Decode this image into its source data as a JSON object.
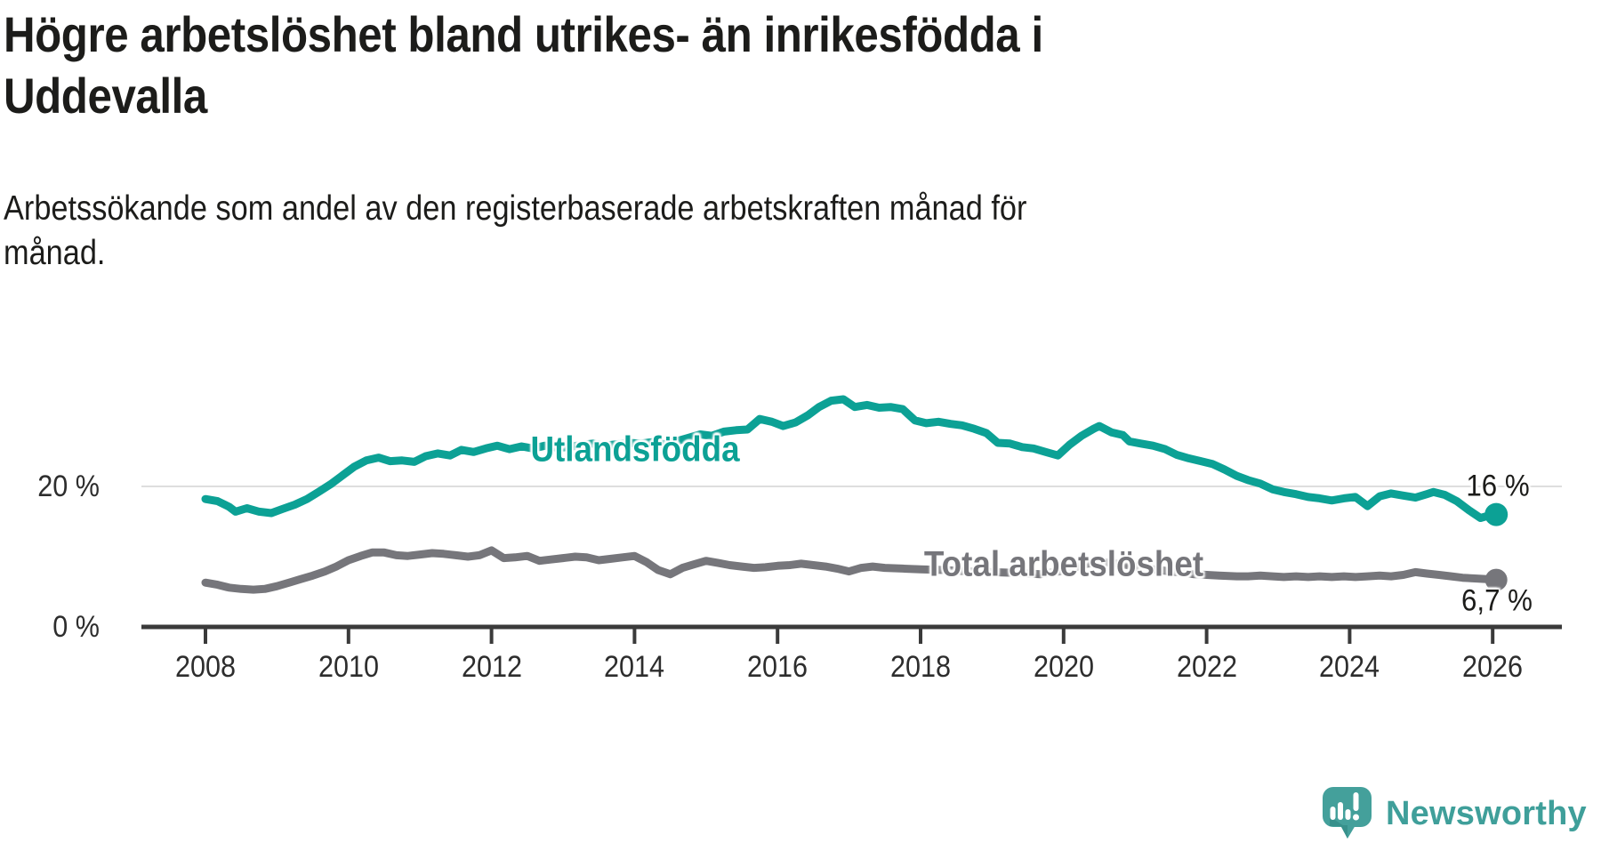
{
  "header": {
    "title_lines": [
      "Högre arbetslöshet bland utrikes- än inrikesfödda i",
      "Uddevalla"
    ],
    "subtitle_lines": [
      "Arbetssökande som andel av den registerbaserade arbetskraften månad för",
      "månad."
    ]
  },
  "branding": {
    "name": "Newsworthy",
    "logo_color": "#44a09b",
    "logo_dark": "#37908b",
    "text_color": "#3f9f9a"
  },
  "chart_data": {
    "type": "line",
    "unit": "%",
    "title": "Högre arbetslöshet bland utrikes- än inrikesfödda i Uddevalla",
    "subtitle": "Arbetssökande som andel av den registerbaserade arbetskraften månad för månad.",
    "x_axis": {
      "range": [
        2008,
        2026.1
      ],
      "ticks": [
        {
          "value": 2008,
          "label": "2008"
        },
        {
          "value": 2010,
          "label": "2010"
        },
        {
          "value": 2012,
          "label": "2012"
        },
        {
          "value": 2014,
          "label": "2014"
        },
        {
          "value": 2016,
          "label": "2016"
        },
        {
          "value": 2018,
          "label": "2018"
        },
        {
          "value": 2020,
          "label": "2020"
        },
        {
          "value": 2022,
          "label": "2022"
        },
        {
          "value": 2024,
          "label": "2024"
        },
        {
          "value": 2026,
          "label": "2026"
        }
      ]
    },
    "y_axis": {
      "range": [
        0,
        35
      ],
      "ticks": [
        {
          "value": 0,
          "label": "0 %",
          "gridline": false
        },
        {
          "value": 20,
          "label": "20 %",
          "gridline": true
        }
      ]
    },
    "style": {
      "axis_color": "#3a3a3a",
      "grid_color": "#dedede",
      "line_width": 9
    },
    "series": [
      {
        "name": "Utlandsfödda",
        "color": "#0ca195",
        "end_label": "16 %",
        "end_value": 16.0,
        "points": [
          [
            2008.0,
            18.2
          ],
          [
            2008.17,
            17.9
          ],
          [
            2008.33,
            17.1
          ],
          [
            2008.42,
            16.4
          ],
          [
            2008.58,
            16.9
          ],
          [
            2008.75,
            16.4
          ],
          [
            2008.92,
            16.2
          ],
          [
            2009.08,
            16.8
          ],
          [
            2009.25,
            17.4
          ],
          [
            2009.42,
            18.2
          ],
          [
            2009.58,
            19.2
          ],
          [
            2009.75,
            20.3
          ],
          [
            2009.92,
            21.6
          ],
          [
            2010.08,
            22.8
          ],
          [
            2010.25,
            23.7
          ],
          [
            2010.42,
            24.1
          ],
          [
            2010.58,
            23.6
          ],
          [
            2010.75,
            23.7
          ],
          [
            2010.92,
            23.5
          ],
          [
            2011.08,
            24.3
          ],
          [
            2011.25,
            24.7
          ],
          [
            2011.42,
            24.4
          ],
          [
            2011.58,
            25.2
          ],
          [
            2011.75,
            24.9
          ],
          [
            2011.92,
            25.4
          ],
          [
            2012.08,
            25.8
          ],
          [
            2012.25,
            25.3
          ],
          [
            2012.42,
            25.7
          ],
          [
            2012.58,
            25.4
          ],
          [
            2012.75,
            25.8
          ],
          [
            2012.92,
            25.5
          ],
          [
            2013.08,
            25.6
          ],
          [
            2013.25,
            25.9
          ],
          [
            2013.42,
            26.1
          ],
          [
            2013.58,
            25.8
          ],
          [
            2013.75,
            26.0
          ],
          [
            2013.92,
            26.2
          ],
          [
            2014.08,
            26.1
          ],
          [
            2014.25,
            26.3
          ],
          [
            2014.42,
            26.0
          ],
          [
            2014.58,
            26.4
          ],
          [
            2014.75,
            26.9
          ],
          [
            2014.92,
            27.4
          ],
          [
            2015.08,
            27.2
          ],
          [
            2015.25,
            27.8
          ],
          [
            2015.42,
            28.0
          ],
          [
            2015.58,
            28.1
          ],
          [
            2015.75,
            29.6
          ],
          [
            2015.92,
            29.2
          ],
          [
            2016.08,
            28.6
          ],
          [
            2016.25,
            29.1
          ],
          [
            2016.42,
            30.1
          ],
          [
            2016.58,
            31.3
          ],
          [
            2016.75,
            32.2
          ],
          [
            2016.92,
            32.4
          ],
          [
            2017.08,
            31.3
          ],
          [
            2017.25,
            31.6
          ],
          [
            2017.42,
            31.2
          ],
          [
            2017.58,
            31.3
          ],
          [
            2017.75,
            31.0
          ],
          [
            2017.92,
            29.4
          ],
          [
            2018.08,
            29.0
          ],
          [
            2018.25,
            29.2
          ],
          [
            2018.42,
            28.9
          ],
          [
            2018.58,
            28.7
          ],
          [
            2018.75,
            28.2
          ],
          [
            2018.92,
            27.6
          ],
          [
            2019.08,
            26.2
          ],
          [
            2019.25,
            26.1
          ],
          [
            2019.42,
            25.6
          ],
          [
            2019.58,
            25.4
          ],
          [
            2019.75,
            24.9
          ],
          [
            2019.92,
            24.4
          ],
          [
            2020.08,
            25.9
          ],
          [
            2020.25,
            27.2
          ],
          [
            2020.42,
            28.2
          ],
          [
            2020.5,
            28.6
          ],
          [
            2020.67,
            27.7
          ],
          [
            2020.83,
            27.3
          ],
          [
            2020.92,
            26.4
          ],
          [
            2021.08,
            26.1
          ],
          [
            2021.25,
            25.8
          ],
          [
            2021.42,
            25.3
          ],
          [
            2021.58,
            24.5
          ],
          [
            2021.75,
            24.0
          ],
          [
            2021.92,
            23.6
          ],
          [
            2022.08,
            23.2
          ],
          [
            2022.25,
            22.4
          ],
          [
            2022.42,
            21.5
          ],
          [
            2022.58,
            20.9
          ],
          [
            2022.75,
            20.4
          ],
          [
            2022.92,
            19.6
          ],
          [
            2023.08,
            19.2
          ],
          [
            2023.25,
            18.9
          ],
          [
            2023.42,
            18.5
          ],
          [
            2023.58,
            18.3
          ],
          [
            2023.75,
            18.0
          ],
          [
            2023.92,
            18.3
          ],
          [
            2024.08,
            18.5
          ],
          [
            2024.25,
            17.2
          ],
          [
            2024.42,
            18.6
          ],
          [
            2024.58,
            19.0
          ],
          [
            2024.75,
            18.7
          ],
          [
            2024.92,
            18.4
          ],
          [
            2025.08,
            18.9
          ],
          [
            2025.17,
            19.2
          ],
          [
            2025.33,
            18.8
          ],
          [
            2025.5,
            17.9
          ],
          [
            2025.67,
            16.6
          ],
          [
            2025.83,
            15.5
          ],
          [
            2026.0,
            16.0
          ]
        ]
      },
      {
        "name": "Total arbetslöshet",
        "color": "#76767b",
        "end_label": "6,7 %",
        "end_value": 6.7,
        "points": [
          [
            2008.0,
            6.3
          ],
          [
            2008.17,
            6.0
          ],
          [
            2008.33,
            5.6
          ],
          [
            2008.5,
            5.4
          ],
          [
            2008.67,
            5.3
          ],
          [
            2008.83,
            5.4
          ],
          [
            2009.0,
            5.8
          ],
          [
            2009.17,
            6.3
          ],
          [
            2009.33,
            6.8
          ],
          [
            2009.5,
            7.3
          ],
          [
            2009.67,
            7.9
          ],
          [
            2009.83,
            8.6
          ],
          [
            2010.0,
            9.5
          ],
          [
            2010.17,
            10.1
          ],
          [
            2010.33,
            10.6
          ],
          [
            2010.5,
            10.6
          ],
          [
            2010.67,
            10.2
          ],
          [
            2010.83,
            10.1
          ],
          [
            2011.0,
            10.3
          ],
          [
            2011.17,
            10.5
          ],
          [
            2011.33,
            10.4
          ],
          [
            2011.5,
            10.2
          ],
          [
            2011.67,
            10.0
          ],
          [
            2011.83,
            10.2
          ],
          [
            2012.0,
            10.9
          ],
          [
            2012.17,
            9.8
          ],
          [
            2012.33,
            9.9
          ],
          [
            2012.5,
            10.1
          ],
          [
            2012.67,
            9.4
          ],
          [
            2012.83,
            9.6
          ],
          [
            2013.0,
            9.8
          ],
          [
            2013.17,
            10.0
          ],
          [
            2013.33,
            9.9
          ],
          [
            2013.5,
            9.5
          ],
          [
            2013.67,
            9.7
          ],
          [
            2013.83,
            9.9
          ],
          [
            2014.0,
            10.1
          ],
          [
            2014.17,
            9.2
          ],
          [
            2014.33,
            8.1
          ],
          [
            2014.5,
            7.5
          ],
          [
            2014.67,
            8.4
          ],
          [
            2014.83,
            8.9
          ],
          [
            2015.0,
            9.4
          ],
          [
            2015.17,
            9.1
          ],
          [
            2015.33,
            8.8
          ],
          [
            2015.5,
            8.6
          ],
          [
            2015.67,
            8.4
          ],
          [
            2015.83,
            8.5
          ],
          [
            2016.0,
            8.7
          ],
          [
            2016.17,
            8.8
          ],
          [
            2016.33,
            9.0
          ],
          [
            2016.5,
            8.8
          ],
          [
            2016.67,
            8.6
          ],
          [
            2016.83,
            8.3
          ],
          [
            2017.0,
            7.9
          ],
          [
            2017.17,
            8.4
          ],
          [
            2017.33,
            8.6
          ],
          [
            2017.5,
            8.4
          ],
          [
            2017.75,
            8.3
          ],
          [
            2018.0,
            8.2
          ],
          [
            2018.33,
            8.1
          ],
          [
            2018.67,
            7.9
          ],
          [
            2019.0,
            7.8
          ],
          [
            2019.33,
            7.7
          ],
          [
            2019.67,
            7.5
          ],
          [
            2020.0,
            8.0
          ],
          [
            2020.33,
            9.0
          ],
          [
            2020.58,
            9.2
          ],
          [
            2020.83,
            8.9
          ],
          [
            2021.17,
            8.3
          ],
          [
            2021.5,
            7.9
          ],
          [
            2021.83,
            7.5
          ],
          [
            2022.17,
            7.3
          ],
          [
            2022.42,
            7.2
          ],
          [
            2022.58,
            7.2
          ],
          [
            2022.75,
            7.3
          ],
          [
            2022.92,
            7.2
          ],
          [
            2023.08,
            7.1
          ],
          [
            2023.25,
            7.2
          ],
          [
            2023.42,
            7.1
          ],
          [
            2023.58,
            7.2
          ],
          [
            2023.75,
            7.1
          ],
          [
            2023.92,
            7.2
          ],
          [
            2024.08,
            7.1
          ],
          [
            2024.25,
            7.2
          ],
          [
            2024.42,
            7.3
          ],
          [
            2024.58,
            7.2
          ],
          [
            2024.75,
            7.4
          ],
          [
            2024.92,
            7.8
          ],
          [
            2025.08,
            7.6
          ],
          [
            2025.25,
            7.4
          ],
          [
            2025.42,
            7.2
          ],
          [
            2025.58,
            7.0
          ],
          [
            2025.75,
            6.9
          ],
          [
            2025.92,
            6.8
          ],
          [
            2026.0,
            6.7
          ]
        ]
      }
    ]
  }
}
